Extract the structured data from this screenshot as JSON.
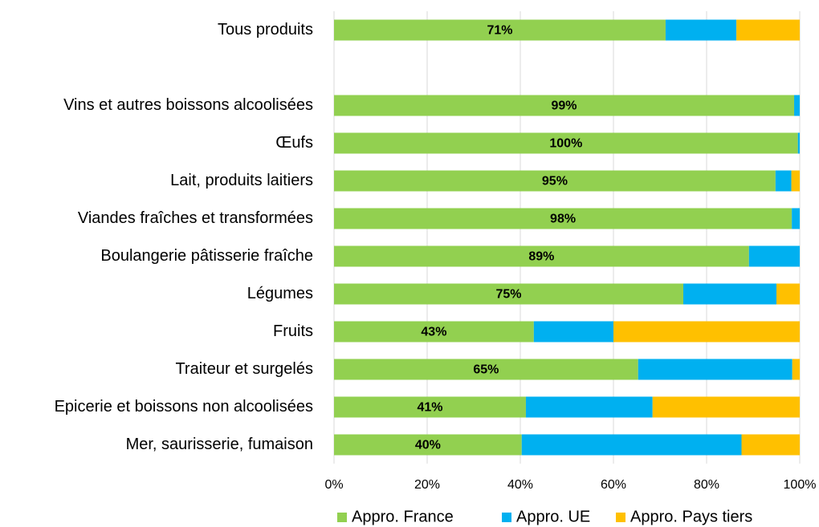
{
  "chart_data": {
    "type": "stacked-bar-horizontal",
    "categories": [
      "Tous produits",
      null,
      "Vins et autres boissons alcoolisées",
      "Œufs",
      "Lait, produits laitiers",
      "Viandes fraîches et transformées",
      "Boulangerie pâtisserie fraîche",
      "Légumes",
      "Fruits",
      "Traiteur et surgelés",
      "Epicerie et boissons non alcoolisées",
      "Mer, saurisserie, fumaison"
    ],
    "series": [
      {
        "name": "Appro. France",
        "color": "#92d050",
        "values": [
          71.2,
          null,
          98.8,
          99.6,
          94.8,
          98.3,
          89.1,
          75.0,
          42.9,
          65.3,
          41.2,
          40.3
        ],
        "value_labels": [
          "71%",
          null,
          "99%",
          "100%",
          "95%",
          "98%",
          "89%",
          "75%",
          "43%",
          "65%",
          "41%",
          "40%"
        ]
      },
      {
        "name": "Appro. UE",
        "color": "#00b0f0",
        "values": [
          15.2,
          null,
          1.2,
          0.4,
          3.4,
          1.7,
          10.9,
          20.0,
          17.1,
          33.1,
          27.2,
          47.2
        ]
      },
      {
        "name": "Appro. Pays tiers",
        "color": "#ffc000",
        "values": [
          13.6,
          null,
          0,
          0,
          1.8,
          0,
          0,
          5.0,
          40.0,
          1.6,
          31.6,
          12.5
        ]
      }
    ],
    "xlim": [
      0,
      100
    ],
    "xticks": [
      {
        "value": 0,
        "label": "0%"
      },
      {
        "value": 20,
        "label": "20%"
      },
      {
        "value": 40,
        "label": "40%"
      },
      {
        "value": 60,
        "label": "60%"
      },
      {
        "value": 80,
        "label": "80%"
      },
      {
        "value": 100,
        "label": "100%"
      }
    ],
    "grid": true,
    "legend": "bottom"
  }
}
